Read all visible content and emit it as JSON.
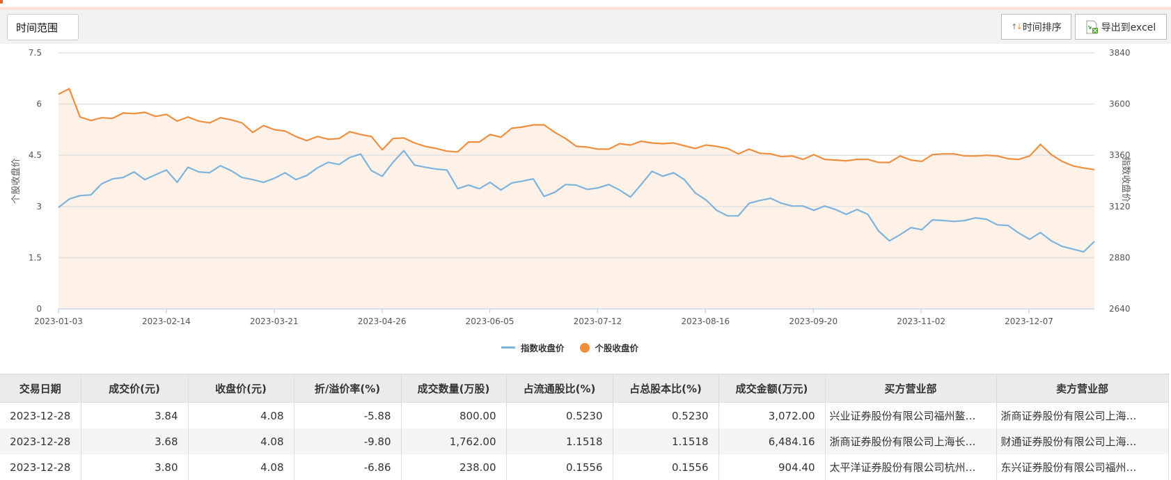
{
  "toolbar": {
    "range_label": "时间范围",
    "sort_label": "时间排序",
    "export_label": "导出到excel"
  },
  "colors": {
    "accent": "#e8632a",
    "index_line": "#7eb3dc",
    "stock_line": "#ed8f3f",
    "area_fill": "#fdf1e8"
  },
  "chart_data": {
    "type": "line",
    "x_tick_labels": [
      "2023-01-03",
      "2023-02-14",
      "2023-03-21",
      "2023-04-26",
      "2023-06-05",
      "2023-07-12",
      "2023-08-16",
      "2023-09-20",
      "2023-11-02",
      "2023-12-07"
    ],
    "x_range": [
      "2023-01-03",
      "2023-12-28"
    ],
    "y_left": {
      "label": "个股收盘价",
      "range": [
        0,
        7.5
      ],
      "ticks": [
        "0",
        "1.5",
        "3",
        "4.5",
        "6",
        "7.5"
      ]
    },
    "y_right": {
      "label": "指数收盘价",
      "range": [
        2640,
        3840
      ],
      "ticks": [
        "2640",
        "2880",
        "3120",
        "3360",
        "3600",
        "3840"
      ]
    },
    "grid": true,
    "legend_position": "bottom",
    "series": [
      {
        "name": "指数收盘价",
        "axis": "right",
        "color": "#7eb3dc",
        "values": [
          3115,
          3155,
          3171,
          3174,
          3226,
          3249,
          3256,
          3282,
          3246,
          3269,
          3291,
          3233,
          3304,
          3282,
          3278,
          3311,
          3288,
          3256,
          3246,
          3233,
          3252,
          3278,
          3246,
          3265,
          3301,
          3327,
          3317,
          3350,
          3366,
          3288,
          3262,
          3327,
          3382,
          3314,
          3304,
          3295,
          3291,
          3203,
          3220,
          3203,
          3233,
          3197,
          3230,
          3239,
          3249,
          3167,
          3187,
          3223,
          3220,
          3200,
          3207,
          3223,
          3197,
          3164,
          3223,
          3285,
          3262,
          3278,
          3246,
          3184,
          3151,
          3102,
          3076,
          3076,
          3135,
          3148,
          3158,
          3135,
          3122,
          3122,
          3102,
          3122,
          3106,
          3083,
          3106,
          3083,
          3005,
          2959,
          2988,
          3021,
          3011,
          3057,
          3054,
          3050,
          3054,
          3067,
          3060,
          3034,
          3031,
          2995,
          2966,
          2998,
          2959,
          2933,
          2920,
          2907,
          2956
        ]
      },
      {
        "name": "个股收盘价",
        "axis": "left",
        "color": "#ed8f3f",
        "area": true,
        "values": [
          6.29,
          6.45,
          5.62,
          5.52,
          5.6,
          5.58,
          5.74,
          5.72,
          5.76,
          5.64,
          5.7,
          5.5,
          5.62,
          5.5,
          5.45,
          5.6,
          5.54,
          5.45,
          5.17,
          5.37,
          5.25,
          5.21,
          5.05,
          4.93,
          5.05,
          4.97,
          4.99,
          5.19,
          5.11,
          5.05,
          4.66,
          4.99,
          5.01,
          4.86,
          4.76,
          4.7,
          4.62,
          4.6,
          4.89,
          4.89,
          5.11,
          5.03,
          5.29,
          5.33,
          5.39,
          5.39,
          5.17,
          4.99,
          4.76,
          4.74,
          4.68,
          4.68,
          4.84,
          4.8,
          4.91,
          4.86,
          4.84,
          4.86,
          4.78,
          4.7,
          4.8,
          4.76,
          4.7,
          4.54,
          4.68,
          4.56,
          4.54,
          4.46,
          4.48,
          4.38,
          4.52,
          4.38,
          4.36,
          4.34,
          4.38,
          4.38,
          4.29,
          4.29,
          4.48,
          4.36,
          4.32,
          4.52,
          4.54,
          4.54,
          4.48,
          4.48,
          4.5,
          4.48,
          4.4,
          4.38,
          4.48,
          4.82,
          4.52,
          4.32,
          4.19,
          4.13,
          4.08
        ]
      }
    ]
  },
  "table": {
    "headers": [
      "交易日期",
      "成交价(元)",
      "收盘价(元)",
      "折/溢价率(%)",
      "成交数量(万股)",
      "占流通股比(%)",
      "占总股本比(%)",
      "成交金额(万元)",
      "买方营业部",
      "卖方营业部"
    ],
    "rows": [
      [
        "2023-12-28",
        "3.84",
        "4.08",
        "-5.88",
        "800.00",
        "0.5230",
        "0.5230",
        "3,072.00",
        "兴业证券股份有限公司福州鳌…",
        "浙商证券股份有限公司上海…"
      ],
      [
        "2023-12-28",
        "3.68",
        "4.08",
        "-9.80",
        "1,762.00",
        "1.1518",
        "1.1518",
        "6,484.16",
        "浙商证券股份有限公司上海长…",
        "财通证券股份有限公司上海…"
      ],
      [
        "2023-12-28",
        "3.80",
        "4.08",
        "-6.86",
        "238.00",
        "0.1556",
        "0.1556",
        "904.40",
        "太平洋证券股份有限公司杭州…",
        "东兴证券股份有限公司福州…"
      ]
    ]
  }
}
